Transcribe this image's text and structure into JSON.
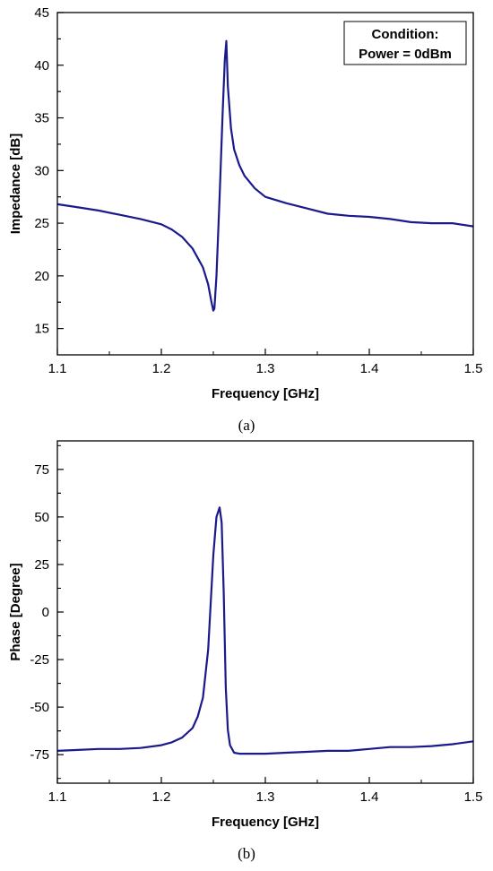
{
  "chart_data": [
    {
      "type": "line",
      "caption": "(a)",
      "xlabel": "Frequency [GHz]",
      "ylabel": "Impedance [dB]",
      "xlim": [
        1.1,
        1.5
      ],
      "ylim": [
        12.5,
        45
      ],
      "xticks": [
        1.1,
        1.2,
        1.3,
        1.4,
        1.5
      ],
      "yticks": [
        15,
        20,
        25,
        30,
        35,
        40,
        45
      ],
      "grid": false,
      "line_color": "#1a1a8c",
      "legend_lines": [
        "Condition:",
        "Power = 0dBm"
      ],
      "legend_position": "top-right",
      "series": [
        {
          "x": [
            1.1,
            1.12,
            1.14,
            1.16,
            1.18,
            1.2,
            1.21,
            1.22,
            1.23,
            1.24,
            1.245,
            1.248,
            1.25,
            1.251,
            1.253,
            1.256,
            1.259,
            1.261,
            1.2625,
            1.264,
            1.267,
            1.27,
            1.275,
            1.28,
            1.29,
            1.3,
            1.32,
            1.34,
            1.36,
            1.38,
            1.4,
            1.42,
            1.44,
            1.46,
            1.48,
            1.5
          ],
          "y": [
            26.8,
            26.5,
            26.2,
            25.8,
            25.4,
            24.9,
            24.4,
            23.7,
            22.6,
            20.8,
            19.2,
            17.6,
            16.7,
            16.9,
            20.0,
            27.5,
            35.5,
            40.5,
            42.3,
            38.0,
            34.0,
            32.0,
            30.5,
            29.5,
            28.3,
            27.5,
            26.9,
            26.4,
            25.9,
            25.7,
            25.6,
            25.4,
            25.1,
            25.0,
            25.0,
            24.7
          ]
        }
      ]
    },
    {
      "type": "line",
      "caption": "(b)",
      "xlabel": "Frequency [GHz]",
      "ylabel": "Phase [Degree]",
      "xlim": [
        1.1,
        1.5
      ],
      "ylim": [
        -90,
        90
      ],
      "xticks": [
        1.1,
        1.2,
        1.3,
        1.4,
        1.5
      ],
      "yticks": [
        -75,
        -50,
        -25,
        0,
        25,
        50,
        75
      ],
      "grid": false,
      "line_color": "#1a1a8c",
      "series": [
        {
          "x": [
            1.1,
            1.12,
            1.14,
            1.16,
            1.18,
            1.2,
            1.21,
            1.22,
            1.23,
            1.235,
            1.24,
            1.245,
            1.25,
            1.253,
            1.256,
            1.258,
            1.26,
            1.262,
            1.264,
            1.266,
            1.268,
            1.27,
            1.275,
            1.28,
            1.3,
            1.32,
            1.34,
            1.36,
            1.38,
            1.4,
            1.42,
            1.44,
            1.46,
            1.48,
            1.5
          ],
          "y": [
            -73,
            -72.5,
            -72,
            -72,
            -71.5,
            -70,
            -68.5,
            -66,
            -61,
            -55,
            -45,
            -20,
            30,
            50,
            55,
            47,
            10,
            -40,
            -62,
            -70,
            -72,
            -74,
            -74.5,
            -74.5,
            -74.5,
            -74,
            -73.5,
            -73,
            -73,
            -72,
            -71,
            -71,
            -70.5,
            -69.5,
            -68
          ]
        }
      ]
    }
  ]
}
